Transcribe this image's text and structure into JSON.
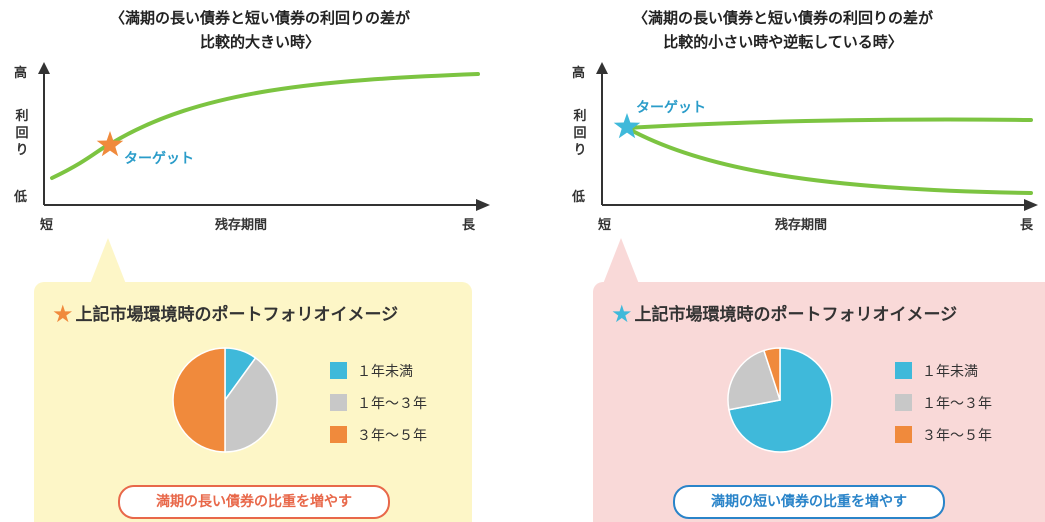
{
  "panels": [
    {
      "heading_line1": "〈満期の長い債券と短い債券の利回りの差が",
      "heading_line2": "比較的大きい時〉",
      "axis": {
        "y_high": "高",
        "y_label": "利回り",
        "y_low": "低",
        "x_short": "短",
        "x_label": "残存期間",
        "x_long": "長"
      },
      "target_label": "ターゲット",
      "box_title": "上記市場環境時のポートフォリオイメージ",
      "star_color": "#f08a3c",
      "legend": [
        {
          "label": "１年未満",
          "color": "#3fb9da"
        },
        {
          "label": "１年～３年",
          "color": "#c8c8c8"
        },
        {
          "label": "３年～５年",
          "color": "#f08a3c"
        }
      ],
      "pill_text": "満期の長い債券の比重を増やす",
      "pill_color": "#e8684a"
    },
    {
      "heading_line1": "〈満期の長い債券と短い債券の利回りの差が",
      "heading_line2": "比較的小さい時や逆転している時〉",
      "axis": {
        "y_high": "高",
        "y_label": "利回り",
        "y_low": "低",
        "x_short": "短",
        "x_label": "残存期間",
        "x_long": "長"
      },
      "target_label": "ターゲット",
      "box_title": "上記市場環境時のポートフォリオイメージ",
      "star_color": "#3fb9da",
      "legend": [
        {
          "label": "１年未満",
          "color": "#3fb9da"
        },
        {
          "label": "１年～３年",
          "color": "#c8c8c8"
        },
        {
          "label": "３年～５年",
          "color": "#f08a3c"
        }
      ],
      "pill_text": "満期の短い債券の比重を増やす",
      "pill_color": "#2a84c9"
    }
  ],
  "chart_data": [
    {
      "type": "pie",
      "title": "上記市場環境時のポートフォリオイメージ",
      "categories": [
        "１年未満",
        "１年～３年",
        "３年～５年"
      ],
      "values": [
        10,
        40,
        50
      ]
    },
    {
      "type": "pie",
      "title": "上記市場環境時のポートフォリオイメージ",
      "categories": [
        "１年未満",
        "１年～３年",
        "３年～５年"
      ],
      "values": [
        72,
        23,
        5
      ]
    }
  ],
  "line_color": "#7cc441"
}
